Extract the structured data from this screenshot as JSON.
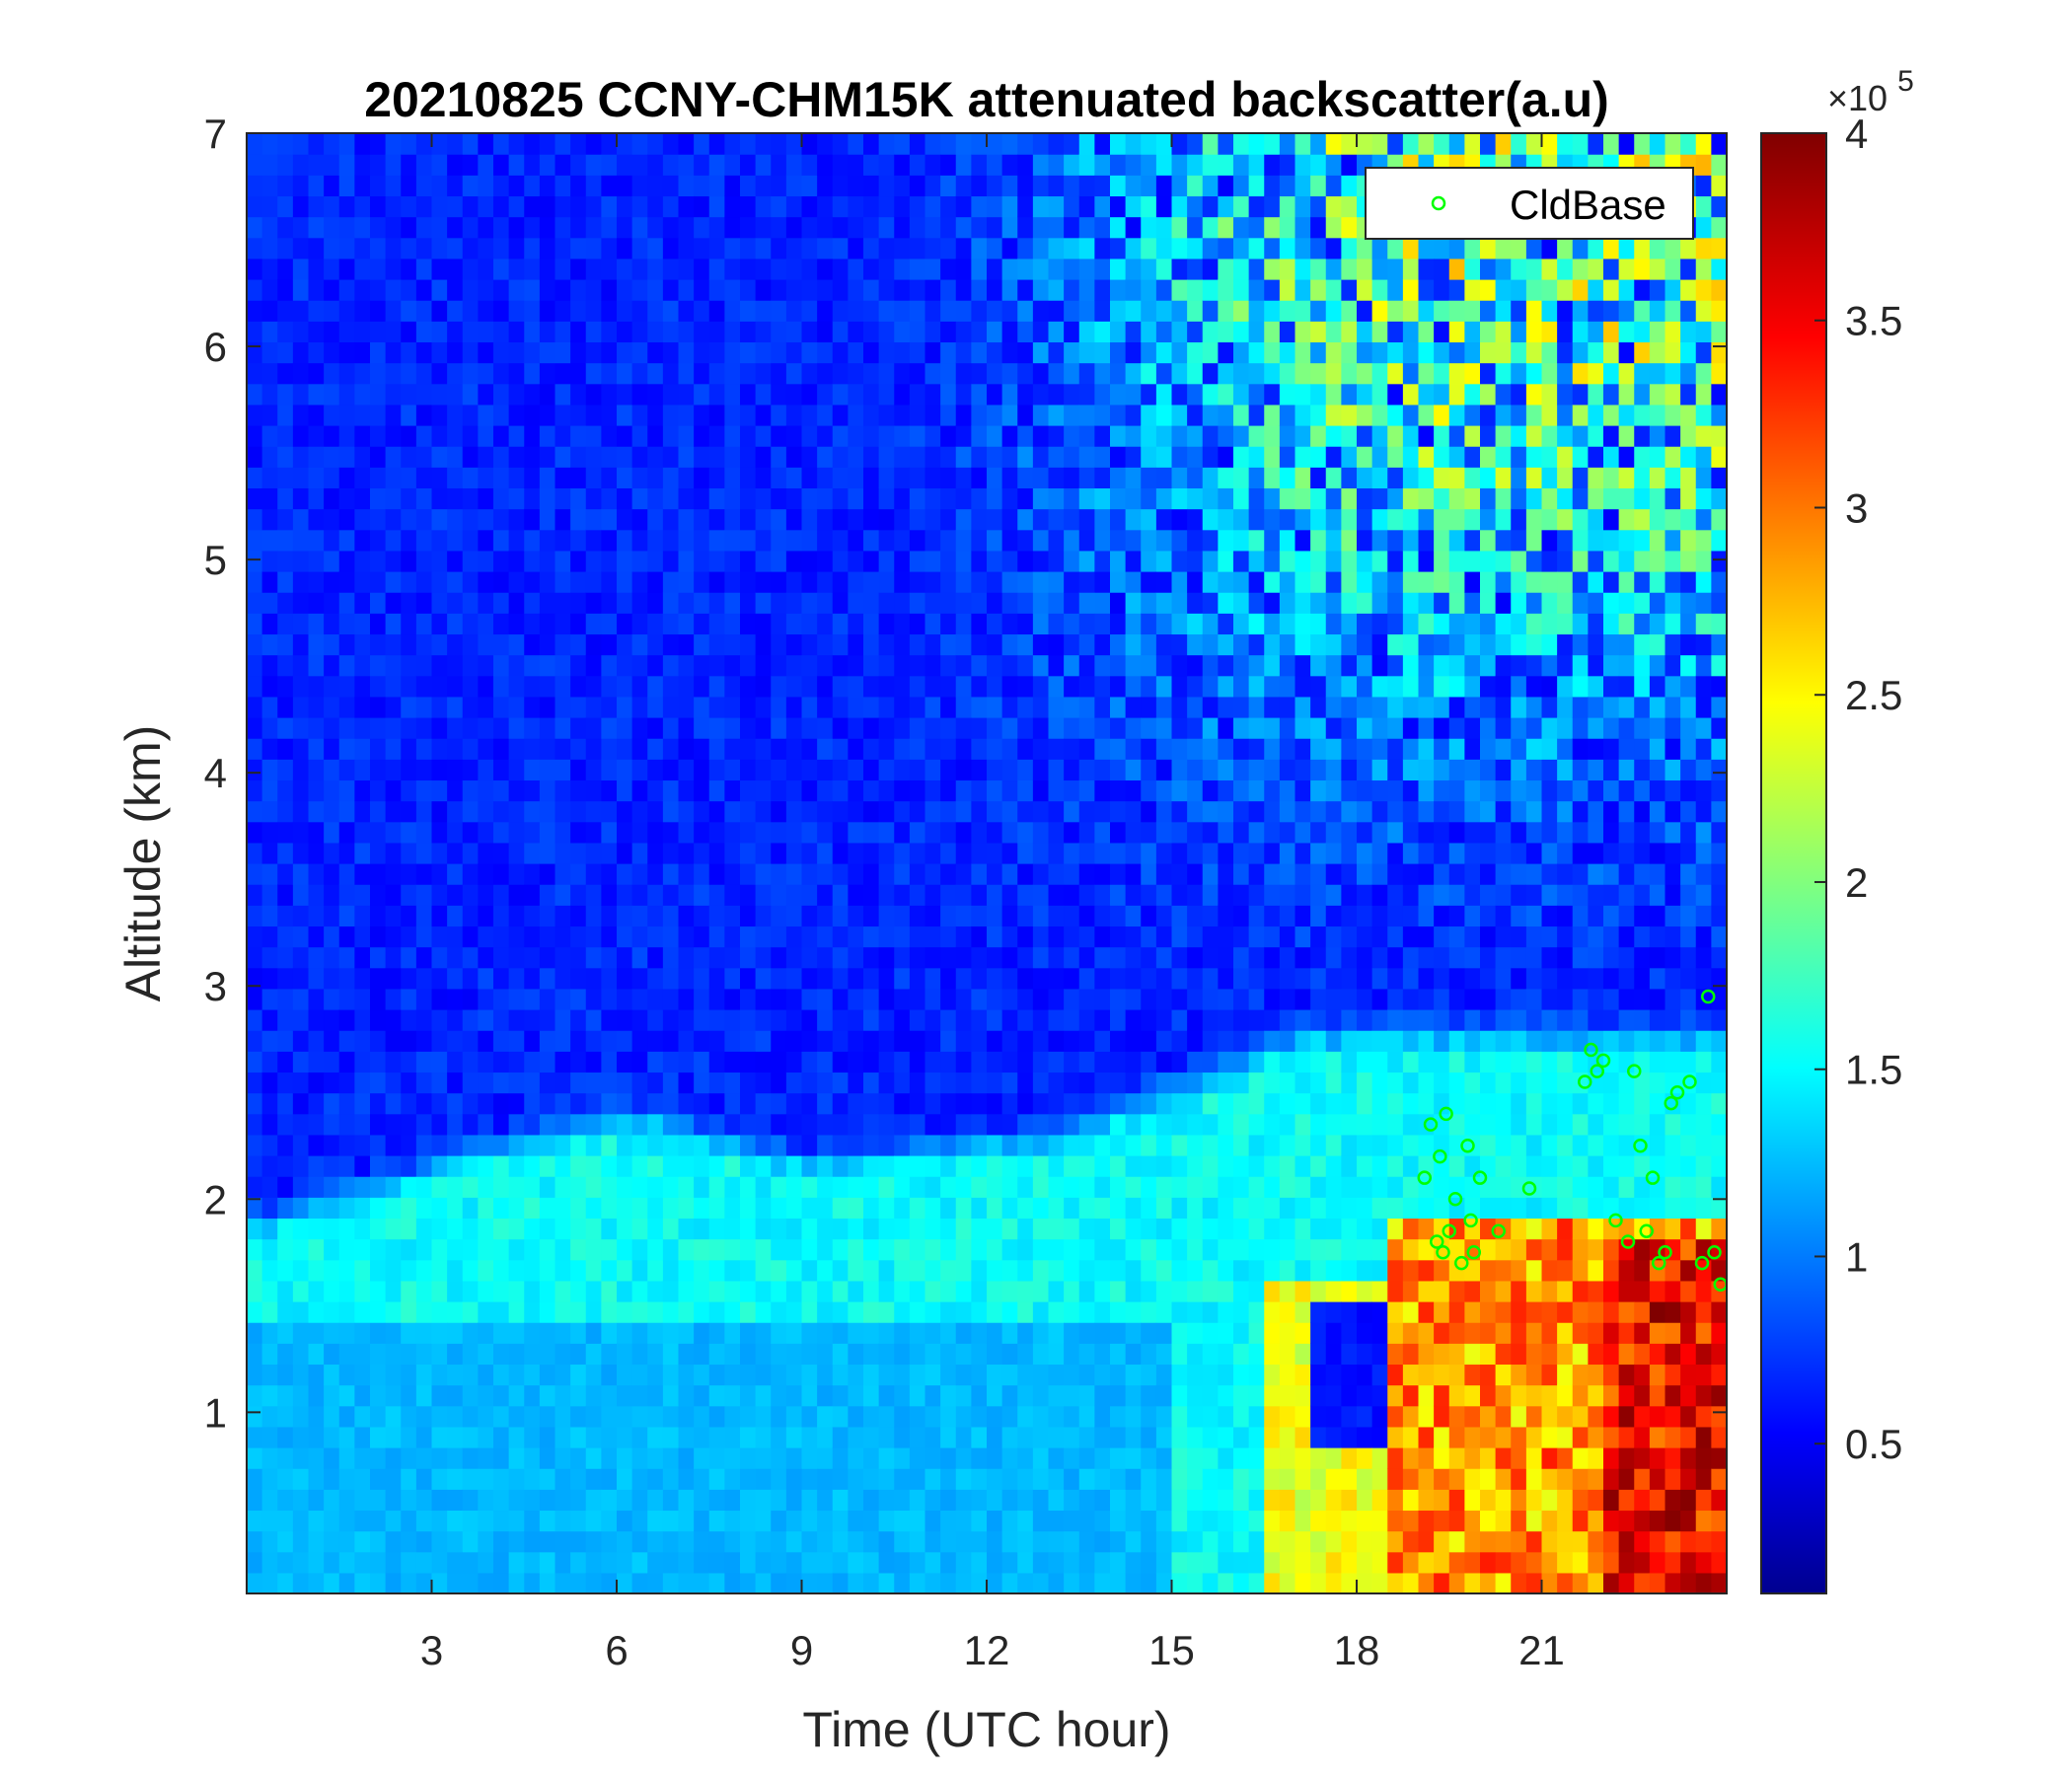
{
  "chart_data": {
    "type": "heatmap",
    "title": "20210825 CCNY-CHM15K attenuated backscatter(a.u)",
    "xlabel": "Time (UTC hour)",
    "ylabel": "Altitude (km)",
    "xlim": [
      0,
      24
    ],
    "ylim": [
      0.15,
      7
    ],
    "xticks": [
      3,
      6,
      9,
      12,
      15,
      18,
      21
    ],
    "yticks": [
      1,
      2,
      3,
      4,
      5,
      6,
      7
    ],
    "colormap": "jet",
    "colorbar": {
      "clim": [
        0.1,
        4
      ],
      "ticks": [
        0.5,
        1,
        1.5,
        2,
        2.5,
        3,
        3.5,
        4
      ],
      "exponent_label": "×10",
      "exponent": "5"
    },
    "legend": {
      "position": "top-right",
      "entries": [
        "CldBase"
      ]
    },
    "series": [
      {
        "name": "CldBase",
        "type": "scatter",
        "marker": "circle-open",
        "color": "#00ff00",
        "x": [
          19.1,
          19.2,
          19.3,
          19.35,
          19.4,
          19.45,
          19.5,
          19.6,
          19.7,
          19.8,
          19.85,
          19.9,
          20.0,
          20.3,
          20.8,
          21.7,
          21.8,
          21.9,
          22.0,
          22.2,
          22.4,
          22.5,
          22.6,
          22.7,
          22.8,
          22.9,
          23.0,
          23.1,
          23.2,
          23.4,
          23.6,
          23.7,
          23.8,
          23.9
        ],
        "y": [
          2.1,
          2.35,
          1.8,
          2.2,
          1.75,
          2.4,
          1.85,
          2.0,
          1.7,
          2.25,
          1.9,
          1.75,
          2.1,
          1.85,
          2.05,
          2.55,
          2.7,
          2.6,
          2.65,
          1.9,
          1.8,
          2.6,
          2.25,
          1.85,
          2.1,
          1.7,
          1.75,
          2.45,
          2.5,
          2.55,
          1.7,
          2.95,
          1.75,
          1.6
        ]
      }
    ]
  }
}
